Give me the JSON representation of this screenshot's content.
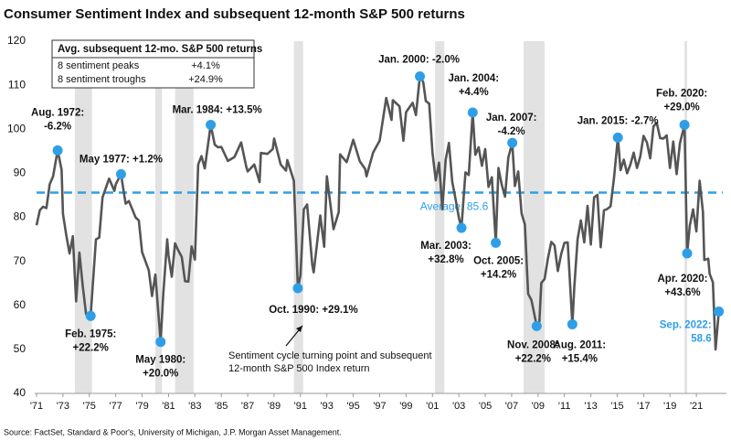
{
  "chart_data": {
    "type": "line",
    "title": "Consumer Sentiment Index and subsequent 12-month S&P 500 returns",
    "source": "Source: FactSet, Standard & Poor's, University of Michigan, J.P. Morgan Asset Management.",
    "color": "#555555",
    "marker_color": "#2e9fe6",
    "recession_color": "#e2e2e2",
    "xlim": [
      1971,
      2023
    ],
    "ylim": [
      40,
      120
    ],
    "yticks": [
      40,
      50,
      60,
      70,
      80,
      90,
      100,
      110,
      120
    ],
    "xticks": [
      {
        "value": 1971,
        "label": "'71"
      },
      {
        "value": 1973,
        "label": "'73"
      },
      {
        "value": 1975,
        "label": "'75"
      },
      {
        "value": 1977,
        "label": "'77"
      },
      {
        "value": 1979,
        "label": "'79"
      },
      {
        "value": 1981,
        "label": "'81"
      },
      {
        "value": 1983,
        "label": "'83"
      },
      {
        "value": 1985,
        "label": "'85"
      },
      {
        "value": 1987,
        "label": "'87"
      },
      {
        "value": 1989,
        "label": "'89"
      },
      {
        "value": 1991,
        "label": "'91"
      },
      {
        "value": 1993,
        "label": "'93"
      },
      {
        "value": 1995,
        "label": "'95"
      },
      {
        "value": 1997,
        "label": "'97"
      },
      {
        "value": 1999,
        "label": "'99"
      },
      {
        "value": 2001,
        "label": "'01"
      },
      {
        "value": 2003,
        "label": "'03"
      },
      {
        "value": 2005,
        "label": "'05"
      },
      {
        "value": 2007,
        "label": "'07"
      },
      {
        "value": 2009,
        "label": "'09"
      },
      {
        "value": 2011,
        "label": "'11"
      },
      {
        "value": 2013,
        "label": "'13"
      },
      {
        "value": 2015,
        "label": "'15"
      },
      {
        "value": 2017,
        "label": "'17"
      },
      {
        "value": 2019,
        "label": "'19"
      },
      {
        "value": 2021,
        "label": "'21"
      }
    ],
    "x": [
      1971.0,
      1971.25,
      1971.5,
      1971.75,
      1972.0,
      1972.25,
      1972.6,
      1972.9,
      1973.0,
      1973.25,
      1973.5,
      1973.75,
      1974.0,
      1974.25,
      1974.5,
      1974.75,
      1975.1,
      1975.5,
      1975.75,
      1976.0,
      1976.5,
      1976.9,
      1977.0,
      1977.4,
      1977.75,
      1978.0,
      1978.5,
      1978.75,
      1979.0,
      1979.5,
      1979.75,
      1980.0,
      1980.4,
      1980.6,
      1980.9,
      1981.0,
      1981.25,
      1981.5,
      1981.75,
      1982.0,
      1982.25,
      1982.5,
      1982.75,
      1983.0,
      1983.25,
      1983.5,
      1983.75,
      1984.2,
      1984.5,
      1984.75,
      1985.0,
      1985.5,
      1986.0,
      1986.5,
      1986.9,
      1987.0,
      1987.5,
      1987.9,
      1988.0,
      1988.5,
      1988.9,
      1989.0,
      1989.5,
      1989.9,
      1990.0,
      1990.5,
      1990.8,
      1991.0,
      1991.25,
      1991.5,
      1991.9,
      1992.0,
      1992.5,
      1992.8,
      1993.0,
      1993.5,
      1993.9,
      1994.0,
      1994.5,
      1995.0,
      1995.5,
      1995.9,
      1996.0,
      1996.5,
      1997.0,
      1997.5,
      1997.9,
      1998.0,
      1998.5,
      1998.8,
      1999.0,
      1999.5,
      1999.75,
      2000.05,
      2000.3,
      2000.5,
      2000.75,
      2001.0,
      2001.25,
      2001.5,
      2001.75,
      2002.0,
      2002.25,
      2002.5,
      2002.75,
      2003.0,
      2003.2,
      2003.5,
      2003.75,
      2004.05,
      2004.25,
      2004.5,
      2004.75,
      2005.0,
      2005.25,
      2005.5,
      2005.8,
      2006.0,
      2006.25,
      2006.5,
      2006.75,
      2007.05,
      2007.25,
      2007.5,
      2007.75,
      2008.0,
      2008.25,
      2008.5,
      2008.9,
      2009.1,
      2009.25,
      2009.5,
      2009.75,
      2010.0,
      2010.25,
      2010.5,
      2010.75,
      2011.0,
      2011.25,
      2011.6,
      2011.75,
      2012.0,
      2012.25,
      2012.5,
      2012.75,
      2013.0,
      2013.25,
      2013.5,
      2013.75,
      2014.0,
      2014.25,
      2014.5,
      2014.75,
      2015.05,
      2015.25,
      2015.5,
      2015.75,
      2016.0,
      2016.25,
      2016.5,
      2016.75,
      2017.0,
      2017.25,
      2017.5,
      2017.75,
      2018.0,
      2018.25,
      2018.5,
      2018.75,
      2019.0,
      2019.25,
      2019.5,
      2019.75,
      2020.1,
      2020.3,
      2020.5,
      2020.75,
      2021.0,
      2021.25,
      2021.5,
      2021.6,
      2021.9,
      2022.0,
      2022.25,
      2022.45,
      2022.7
    ],
    "values": [
      78.2,
      81.6,
      82.4,
      82.1,
      87.5,
      89.3,
      95.2,
      90.8,
      80.8,
      76.0,
      71.8,
      75.7,
      60.9,
      72.0,
      64.5,
      58.0,
      57.6,
      75.0,
      75.4,
      84.5,
      88.8,
      86.0,
      87.5,
      89.8,
      83.1,
      83.7,
      80.0,
      79.3,
      72.1,
      68.0,
      62.1,
      67.0,
      51.7,
      62.3,
      75.0,
      71.4,
      66.5,
      74.1,
      72.4,
      71.0,
      65.5,
      65.4,
      73.4,
      70.4,
      92.0,
      93.9,
      91.1,
      101.0,
      96.5,
      95.9,
      96.0,
      92.8,
      93.7,
      97.0,
      91.4,
      90.4,
      92.0,
      88.0,
      94.6,
      94.4,
      95.5,
      97.9,
      92.0,
      90.6,
      93.0,
      88.3,
      63.9,
      66.8,
      81.8,
      82.9,
      69.1,
      67.5,
      80.4,
      73.3,
      89.3,
      77.3,
      81.2,
      94.3,
      92.5,
      97.6,
      92.7,
      91.0,
      89.3,
      94.7,
      97.4,
      107.1,
      102.1,
      106.6,
      105.2,
      97.4,
      103.9,
      106.0,
      103.2,
      112.0,
      110.7,
      106.4,
      105.8,
      94.7,
      88.4,
      92.4,
      81.8,
      93.0,
      96.9,
      88.1,
      84.2,
      79.9,
      77.6,
      90.2,
      89.6,
      103.8,
      94.2,
      95.9,
      91.7,
      95.5,
      86.9,
      89.1,
      74.2,
      91.2,
      87.4,
      84.7,
      93.6,
      96.9,
      87.1,
      90.4,
      80.9,
      78.4,
      62.6,
      61.2,
      55.3,
      56.3,
      65.1,
      66.0,
      70.6,
      74.4,
      73.6,
      67.8,
      71.6,
      74.2,
      74.3,
      55.7,
      64.1,
      75.0,
      79.3,
      74.3,
      82.6,
      73.8,
      84.5,
      85.1,
      73.2,
      81.6,
      81.9,
      82.5,
      88.8,
      98.1,
      90.7,
      93.1,
      90.0,
      92.0,
      94.7,
      91.2,
      93.8,
      98.5,
      97.0,
      93.4,
      100.7,
      101.4,
      98.0,
      97.9,
      98.6,
      91.2,
      97.2,
      89.8,
      96.8,
      101.0,
      71.8,
      78.1,
      81.8,
      76.8,
      88.3,
      81.2,
      70.3,
      70.6,
      67.2,
      65.2,
      50.0,
      58.6
    ],
    "recessions": [
      [
        1973.9,
        1975.2
      ],
      [
        1980.0,
        1980.5
      ],
      [
        1981.5,
        1982.9
      ],
      [
        1990.5,
        1991.2
      ],
      [
        2001.2,
        2001.9
      ],
      [
        2007.9,
        2009.5
      ],
      [
        2020.1,
        2020.3
      ]
    ],
    "average": {
      "value": 85.6,
      "label": "Average: 85.6"
    },
    "table": {
      "header": "Avg. subsequent 12-mo. S&P 500 returns",
      "rows": [
        [
          "8 sentiment peaks",
          "+4.1%"
        ],
        [
          "8 sentiment troughs",
          "+24.9%"
        ]
      ]
    },
    "note": [
      "Sentiment cycle turning point and subsequent",
      "12-month S&P 500 Index return"
    ],
    "events": [
      {
        "x": 1972.6,
        "y": 95.2,
        "label": [
          "Aug. 1972:",
          "-6.2%"
        ]
      },
      {
        "x": 1977.4,
        "y": 89.8,
        "label": [
          "May 1977: +1.2%"
        ]
      },
      {
        "x": 1975.1,
        "y": 57.6,
        "label": [
          "Feb. 1975:",
          "+22.2%"
        ]
      },
      {
        "x": 1980.4,
        "y": 51.7,
        "label": [
          "May 1980:",
          "+20.0%"
        ]
      },
      {
        "x": 1984.2,
        "y": 101.0,
        "label": [
          "Mar. 1984: +13.5%"
        ]
      },
      {
        "x": 1990.8,
        "y": 63.9,
        "label": [
          "Oct. 1990: +29.1%"
        ]
      },
      {
        "x": 2000.05,
        "y": 112.0,
        "label": [
          "Jan. 2000: -2.0%"
        ]
      },
      {
        "x": 2003.2,
        "y": 77.6,
        "label": [
          "Mar. 2003:",
          "+32.8%"
        ]
      },
      {
        "x": 2004.05,
        "y": 103.8,
        "label": [
          "Jan. 2004:",
          "+4.4%"
        ]
      },
      {
        "x": 2005.8,
        "y": 74.2,
        "label": [
          "Oct. 2005:",
          "+14.2%"
        ]
      },
      {
        "x": 2007.05,
        "y": 96.9,
        "label": [
          "Jan. 2007:",
          "-4.2%"
        ]
      },
      {
        "x": 2008.9,
        "y": 55.3,
        "label": [
          "Nov. 2008:",
          "+22.2%"
        ]
      },
      {
        "x": 2011.6,
        "y": 55.7,
        "label": [
          "Aug. 2011:",
          "+15.4%"
        ]
      },
      {
        "x": 2015.05,
        "y": 98.1,
        "label": [
          "Jan. 2015: -2.7%"
        ]
      },
      {
        "x": 2020.1,
        "y": 101.0,
        "label": [
          "Feb. 2020:",
          "+29.0%"
        ]
      },
      {
        "x": 2020.3,
        "y": 71.8,
        "label": [
          "Apr. 2020:",
          "+43.6%"
        ]
      },
      {
        "x": 2022.7,
        "y": 58.6,
        "label": [
          "Sep. 2022:",
          "58.6"
        ]
      }
    ]
  }
}
